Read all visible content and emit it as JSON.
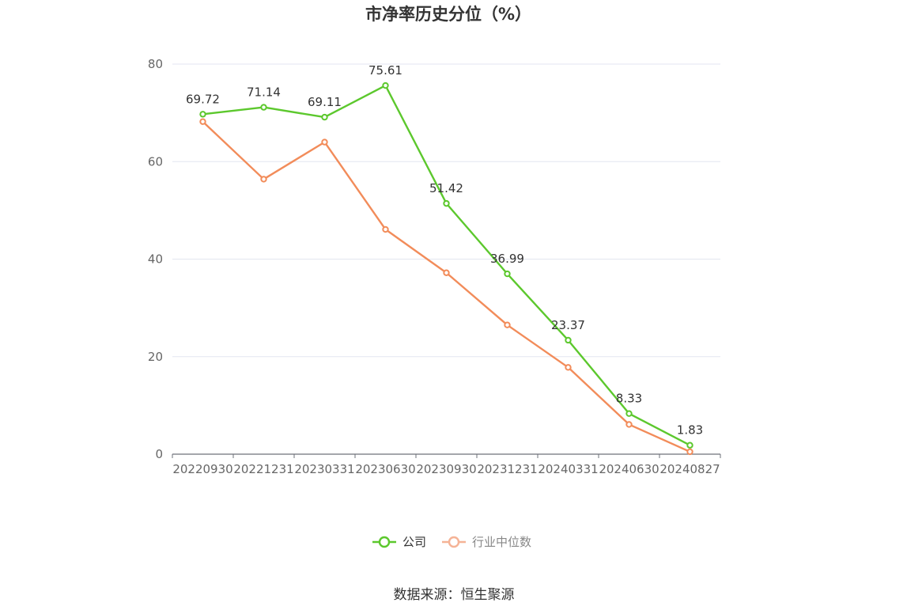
{
  "chart_data": {
    "type": "line",
    "title": "市净率历史分位（%）",
    "x": [
      "20220930",
      "20221231",
      "20230331",
      "20230630",
      "20230930",
      "20231231",
      "20240331",
      "20240630",
      "20240827"
    ],
    "ylim": [
      0,
      80
    ],
    "yticks": [
      0,
      20,
      40,
      60,
      80
    ],
    "grid": true,
    "legend_position": "bottom",
    "series": [
      {
        "name": "公司",
        "color": "#5cc82d",
        "show_labels": true,
        "values": [
          69.72,
          71.14,
          69.11,
          75.61,
          51.42,
          36.99,
          23.37,
          8.33,
          1.83
        ]
      },
      {
        "name": "行业中位数",
        "color": "#f28c5a",
        "legend_color": "#f5b396",
        "show_labels": false,
        "values": [
          68.2,
          56.4,
          64.0,
          46.1,
          37.2,
          26.5,
          17.8,
          6.1,
          0.5
        ]
      }
    ],
    "source": "数据来源：恒生聚源"
  }
}
